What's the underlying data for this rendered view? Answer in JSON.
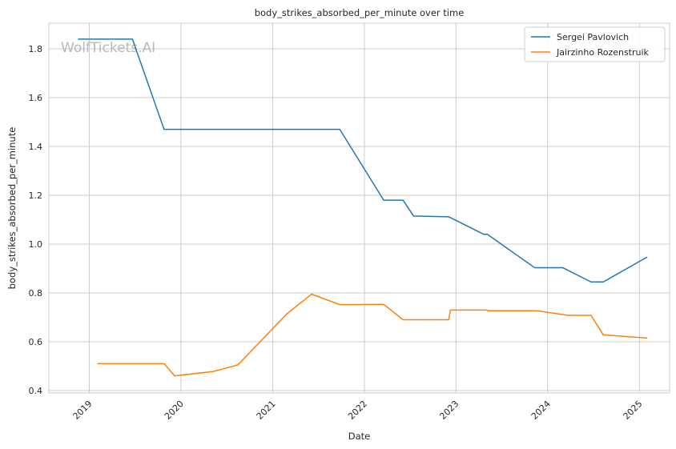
{
  "chart_data": {
    "type": "line",
    "title": "body_strikes_absorbed_per_minute over time",
    "xlabel": "Date",
    "ylabel": "body_strikes_absorbed_per_minute",
    "watermark": "WolfTickets.AI",
    "xlim": [
      "2018-07-24",
      "2025-05-01"
    ],
    "ylim": [
      0.39,
      1.905
    ],
    "x_ticks": [
      "2019",
      "2020",
      "2021",
      "2022",
      "2023",
      "2024",
      "2025"
    ],
    "y_ticks": [
      "0.4",
      "0.6",
      "0.8",
      "1.0",
      "1.2",
      "1.4",
      "1.6",
      "1.8"
    ],
    "grid": true,
    "legend_position": "top-right",
    "series": [
      {
        "name": "Sergei Pavlovich",
        "color": "#1f77b4",
        "points": [
          [
            "2018-11-17",
            1.84
          ],
          [
            "2019-06-22",
            1.84
          ],
          [
            "2019-10-26",
            1.47
          ],
          [
            "2021-09-25",
            1.47
          ],
          [
            "2022-03-19",
            1.18
          ],
          [
            "2022-06-04",
            1.18
          ],
          [
            "2022-07-16",
            1.115
          ],
          [
            "2022-12-03",
            1.112
          ],
          [
            "2023-04-22",
            1.04
          ],
          [
            "2023-05-06",
            1.04
          ],
          [
            "2023-11-11",
            0.903
          ],
          [
            "2024-03-02",
            0.903
          ],
          [
            "2024-06-22",
            0.845
          ],
          [
            "2024-08-10",
            0.845
          ],
          [
            "2025-02-01",
            0.947
          ]
        ]
      },
      {
        "name": "Jairzinho Rozenstruik",
        "color": "#ff7f0e",
        "points": [
          [
            "2019-02-02",
            0.51
          ],
          [
            "2019-10-26",
            0.51
          ],
          [
            "2019-12-07",
            0.46
          ],
          [
            "2020-05-09",
            0.478
          ],
          [
            "2020-08-15",
            0.505
          ],
          [
            "2021-02-27",
            0.715
          ],
          [
            "2021-06-05",
            0.795
          ],
          [
            "2021-09-25",
            0.752
          ],
          [
            "2022-03-19",
            0.753
          ],
          [
            "2022-06-04",
            0.69
          ],
          [
            "2022-12-03",
            0.69
          ],
          [
            "2022-12-10",
            0.73
          ],
          [
            "2023-04-29",
            0.73
          ],
          [
            "2023-05-13",
            0.727
          ],
          [
            "2023-11-18",
            0.727
          ],
          [
            "2024-03-23",
            0.708
          ],
          [
            "2024-06-22",
            0.708
          ],
          [
            "2024-08-10",
            0.628
          ],
          [
            "2025-02-01",
            0.615
          ]
        ]
      }
    ]
  }
}
